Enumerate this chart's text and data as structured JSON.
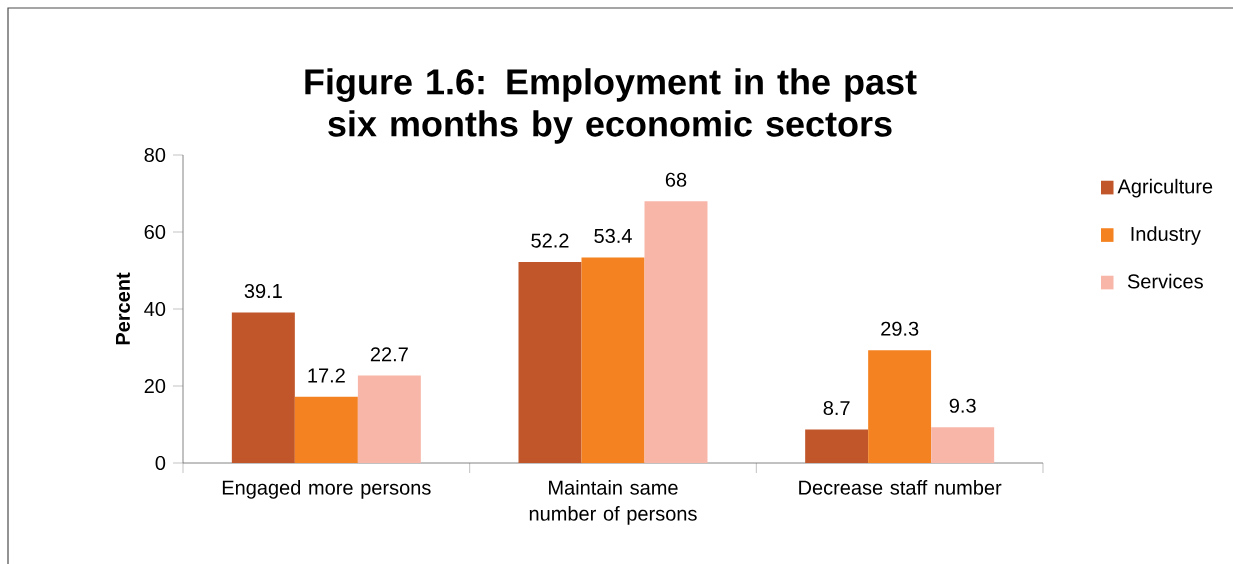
{
  "chart_data": {
    "type": "bar",
    "title": "Figure 1.6: Employment in the past six months by economic sectors",
    "ylabel": "Percent",
    "categories": [
      "Engaged more persons",
      "Maintain same number of persons",
      "Decrease staff number"
    ],
    "series": [
      {
        "name": "Agriculture",
        "color": "#c0562a",
        "values": [
          39.1,
          52.2,
          8.7
        ]
      },
      {
        "name": "Industry",
        "color": "#f48221",
        "values": [
          17.2,
          53.4,
          29.3
        ]
      },
      {
        "name": "Services",
        "color": "#f8b6a9",
        "values": [
          22.7,
          68,
          9.3
        ]
      }
    ],
    "ylim": [
      0,
      80
    ],
    "yticks": [
      0,
      20,
      40,
      60,
      80
    ],
    "grid": false,
    "legend": "right",
    "data_labels": true
  }
}
